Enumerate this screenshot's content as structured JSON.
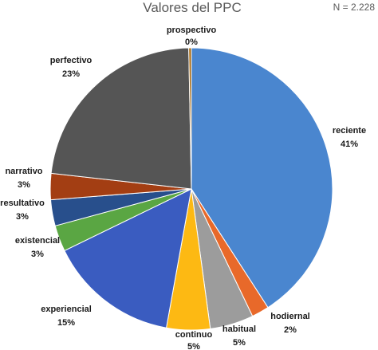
{
  "chart_data": {
    "type": "pie",
    "title": "Valores del PPC",
    "note": "N = 2.228",
    "slices": [
      {
        "name": "reciente",
        "value": 41,
        "label": "41%",
        "color": "#4a86cf"
      },
      {
        "name": "hodiernal",
        "value": 2,
        "label": "2%",
        "color": "#e8692a"
      },
      {
        "name": "habitual",
        "value": 5,
        "label": "5%",
        "color": "#9c9c9c"
      },
      {
        "name": "continuo",
        "value": 5,
        "label": "5%",
        "color": "#fdb913"
      },
      {
        "name": "experiencial",
        "value": 15,
        "label": "15%",
        "color": "#3a5cc0"
      },
      {
        "name": "existencial",
        "value": 3,
        "label": "3%",
        "color": "#5aa643"
      },
      {
        "name": "resultativo",
        "value": 3,
        "label": "3%",
        "color": "#284f8c"
      },
      {
        "name": "narrativo",
        "value": 3,
        "label": "3%",
        "color": "#a33e13"
      },
      {
        "name": "perfectivo",
        "value": 23,
        "label": "23%",
        "color": "#555555"
      },
      {
        "name": "prospectivo",
        "value": 0.3,
        "label": "0%",
        "color": "#a86a10"
      }
    ]
  }
}
